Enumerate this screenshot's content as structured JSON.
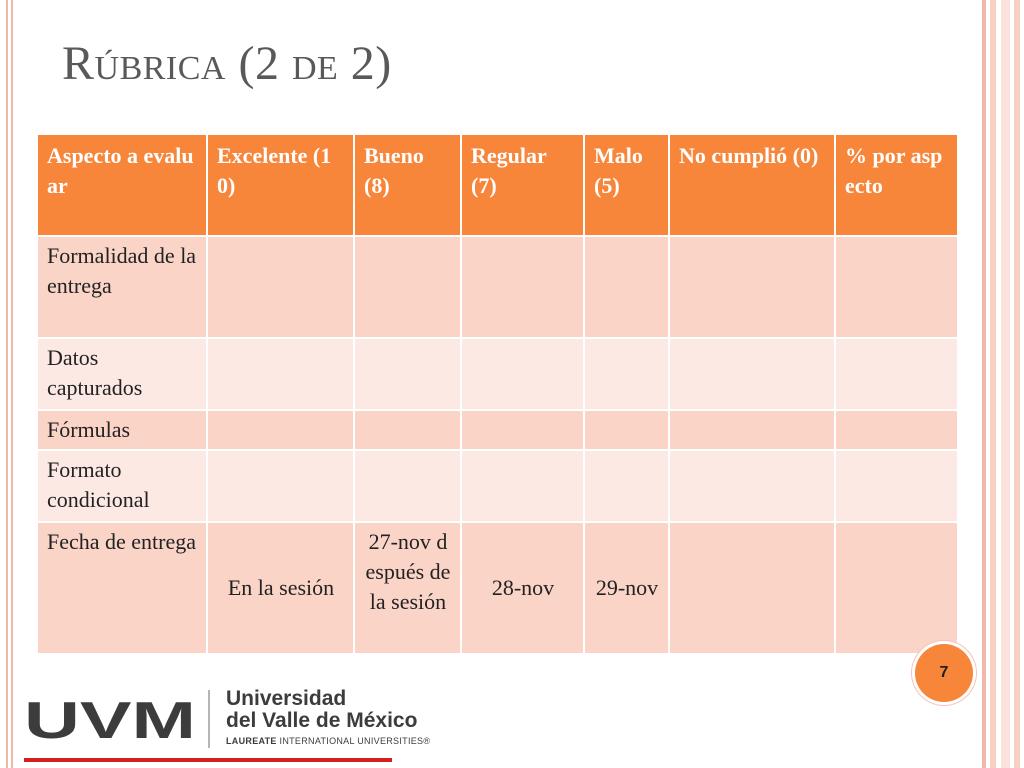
{
  "slide": {
    "title": "Rúbrica (2 de 2)",
    "number": "7"
  },
  "table": {
    "headers": [
      "Aspecto a evaluar",
      "Excelente (10)",
      "Bueno (8)",
      "Regular (7)",
      "Malo (5)",
      "No cumplió (0)",
      "% por aspecto"
    ],
    "rows": [
      {
        "criterion": "Formalidad de la entrega",
        "cells": [
          "",
          "",
          "",
          "",
          "",
          ""
        ]
      },
      {
        "criterion": "Datos capturados",
        "cells": [
          "",
          "",
          "",
          "",
          "",
          ""
        ]
      },
      {
        "criterion": "Fórmulas",
        "cells": [
          "",
          "",
          "",
          "",
          "",
          ""
        ]
      },
      {
        "criterion": "Formato condicional",
        "cells": [
          "",
          "",
          "",
          "",
          "",
          ""
        ]
      },
      {
        "criterion": "Fecha de entrega",
        "cells": [
          "En la sesión",
          "27-nov después de la sesión",
          "28-nov",
          "29-nov",
          "",
          ""
        ]
      }
    ]
  },
  "logo": {
    "mark": "UVM",
    "name_line1": "Universidad",
    "name_line2": "del Valle de México",
    "tagline_bold": "LAUREATE",
    "tagline_rest": " INTERNATIONAL UNIVERSITIES®"
  },
  "colors": {
    "header_fill": "#f7863b",
    "row_fill_odd": "#fbd4c8",
    "row_fill_even": "#fde9e4",
    "title_text": "#595959",
    "logo_red": "#d21f1f",
    "logo_gray": "#3c3c3c"
  }
}
